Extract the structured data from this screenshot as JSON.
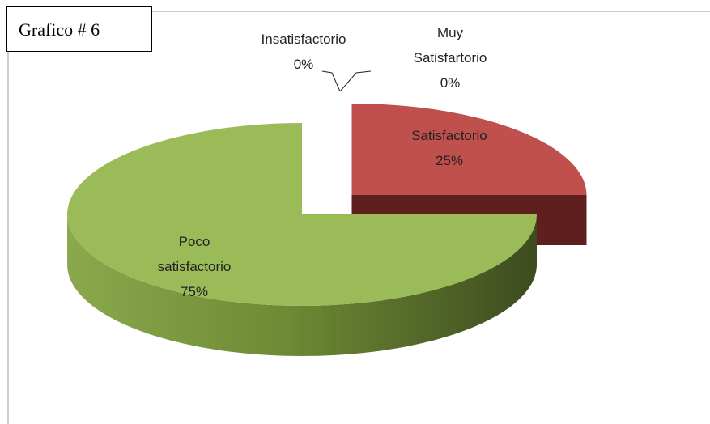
{
  "chart_data": {
    "type": "pie3d",
    "title": "Grafico # 6",
    "categories": [
      "Muy Satisfartorio",
      "Satisfactorio",
      "Poco satisfactorio",
      "Insatisfactorio"
    ],
    "values": [
      0,
      25,
      75,
      0
    ],
    "value_labels": [
      "0%",
      "25%",
      "75%",
      "0%"
    ],
    "colors": [
      "#4f81bd",
      "#c0504d",
      "#9bbb59",
      "#8064a2"
    ],
    "explode": [
      0,
      0.4,
      0,
      0
    ]
  }
}
